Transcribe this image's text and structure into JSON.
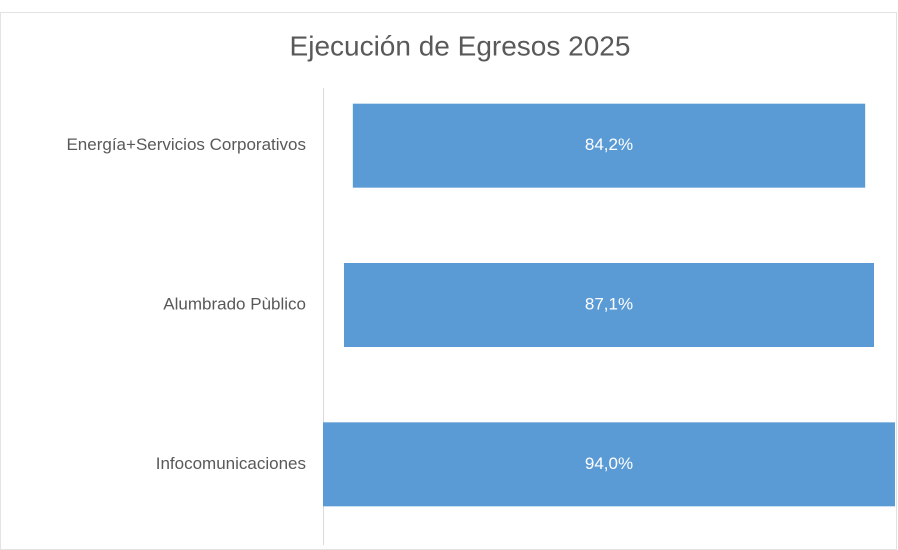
{
  "chart_data": {
    "type": "funnel",
    "title": "Ejecución de Egresos 2025",
    "categories": [
      "Energía+Servicios Corporativos",
      "Alumbrado Pùblico",
      "Infocomunicaciones"
    ],
    "values": [
      84.2,
      87.1,
      94.0
    ],
    "value_labels": [
      "84,2%",
      "87,1%",
      "94,0%"
    ],
    "color": "#5b9bd5"
  }
}
